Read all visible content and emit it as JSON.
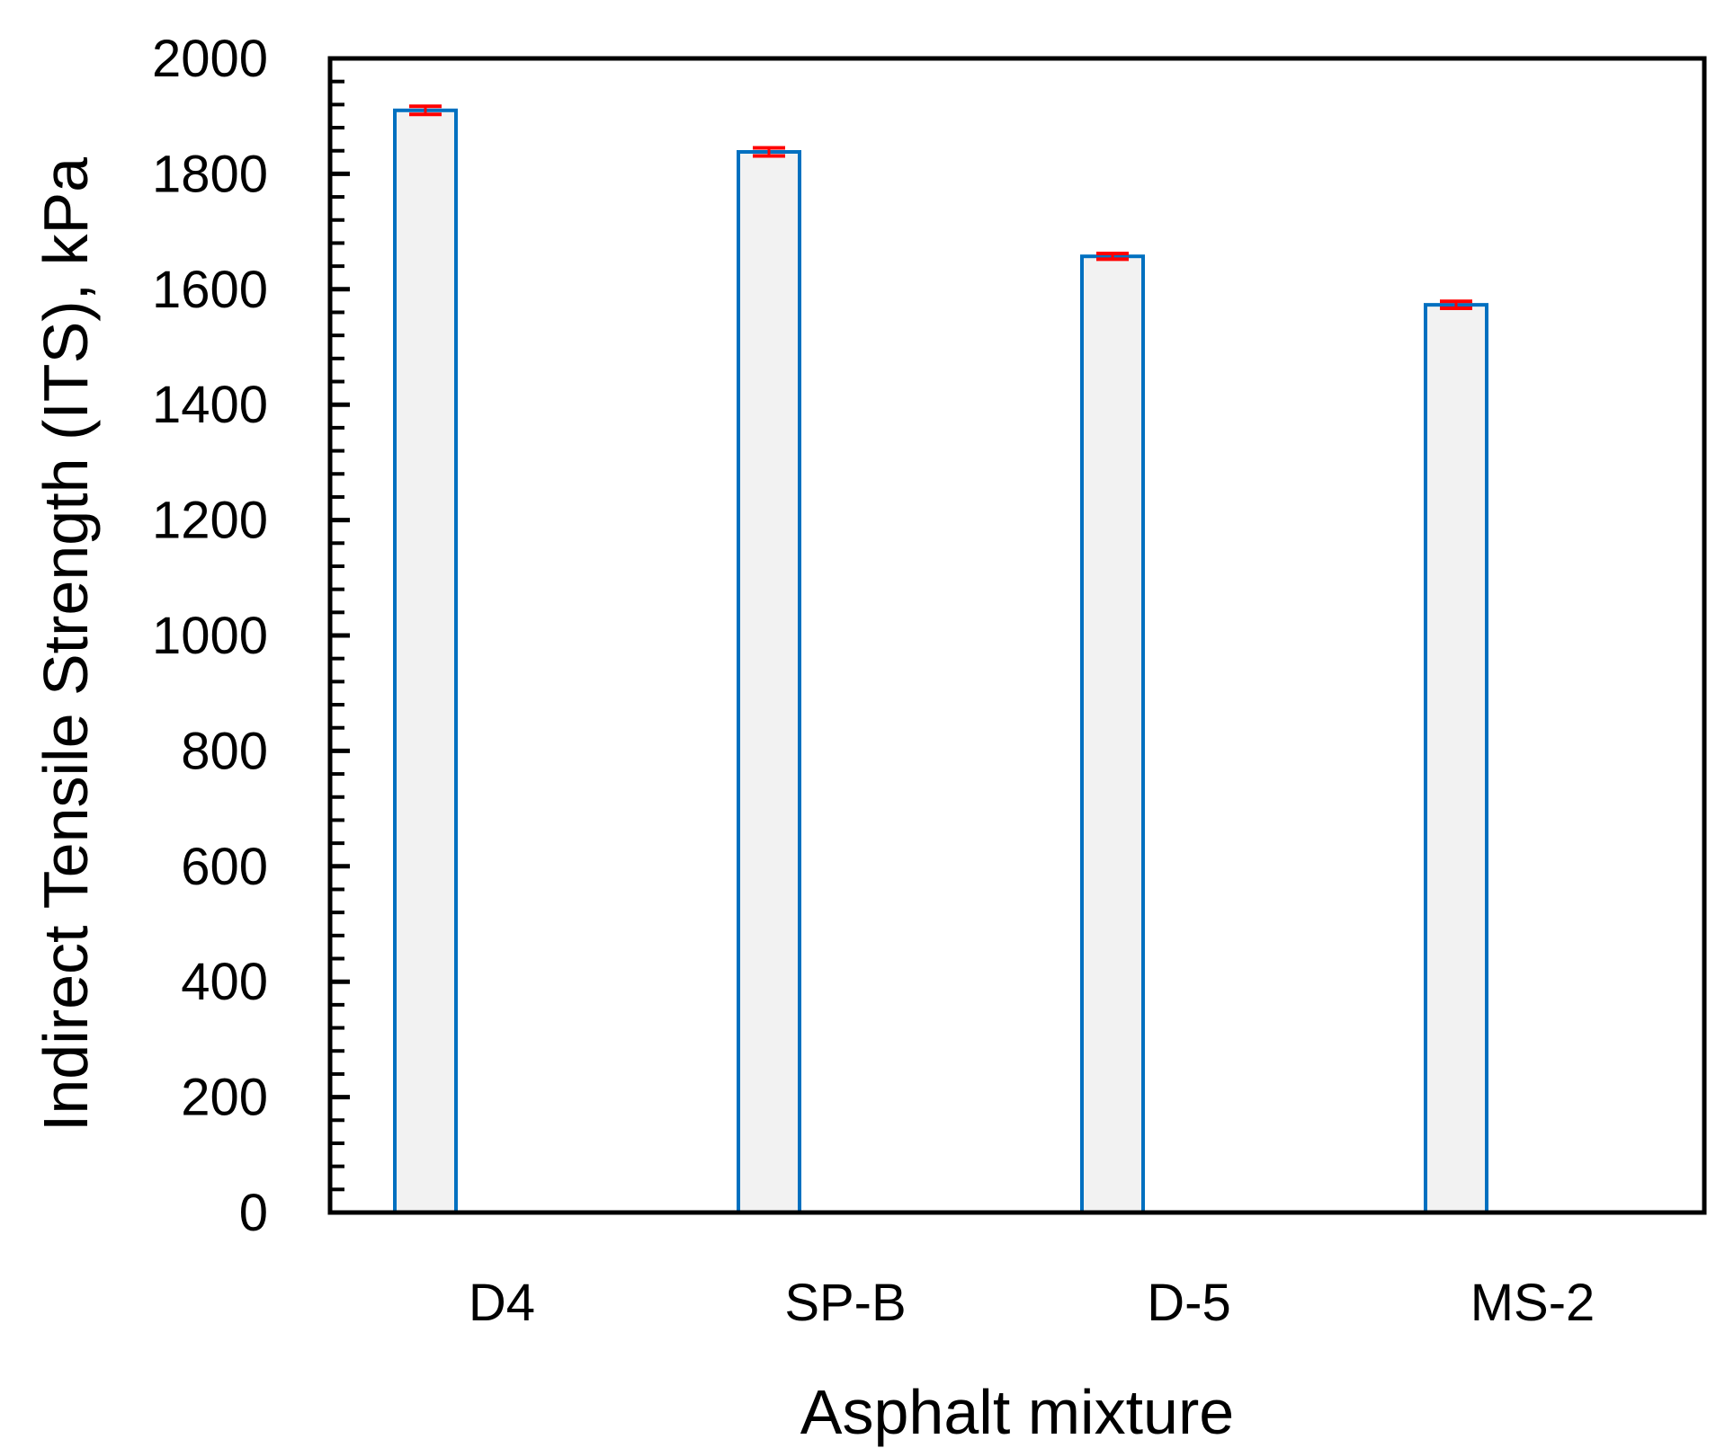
{
  "chart_data": {
    "type": "bar",
    "categories": [
      "D4",
      "SP-B",
      "D-5",
      "MS-2"
    ],
    "values": [
      1910,
      1838,
      1657,
      1573
    ],
    "error": [
      7,
      7,
      5,
      6
    ],
    "xlabel": "Asphalt mixture",
    "ylabel": "Indirect Tensile Strength (ITS), kPa",
    "ylim": [
      0,
      2000
    ],
    "yticks": [
      "0",
      "200",
      "400",
      "600",
      "800",
      "1000",
      "1200",
      "1400",
      "1600",
      "1800",
      "2000"
    ],
    "minor_tick_step": 40,
    "grid": false,
    "legend": "none",
    "colors": {
      "bar_fill": "#f2f2f2",
      "bar_edge": "#0070c0",
      "error_bar": "#ff0000",
      "axis": "#000000"
    }
  }
}
